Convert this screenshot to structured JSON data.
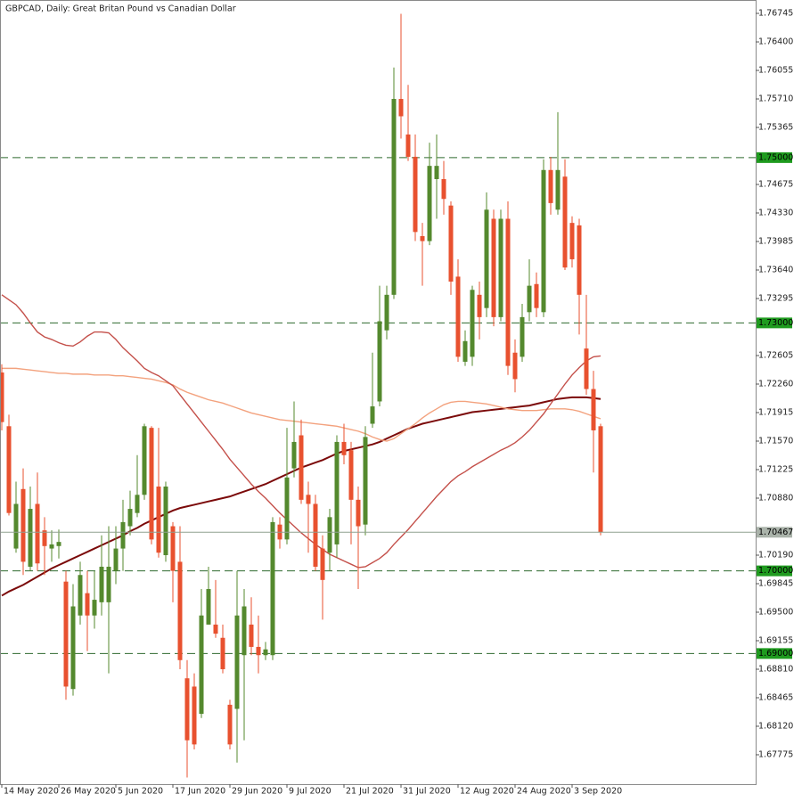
{
  "chart_data": {
    "type": "candlestick",
    "title": "GBPCAD, Daily:  Great Britan Pound vs Canadian Dollar",
    "categories": [
      "14 May 2020",
      null,
      null,
      null,
      null,
      null,
      null,
      null,
      "26 May 2020",
      null,
      null,
      null,
      null,
      null,
      null,
      null,
      "5 Jun 2020",
      null,
      null,
      null,
      null,
      null,
      null,
      null,
      "17 Jun 2020",
      null,
      null,
      null,
      null,
      null,
      null,
      null,
      "29 Jun 2020",
      null,
      null,
      null,
      null,
      null,
      null,
      null,
      "9 Jul 2020",
      null,
      null,
      null,
      null,
      null,
      null,
      null,
      "21 Jul 2020",
      null,
      null,
      null,
      null,
      null,
      null,
      null,
      "31 Jul 2020",
      null,
      null,
      null,
      null,
      null,
      null,
      null,
      "12 Aug 2020",
      null,
      null,
      null,
      null,
      null,
      null,
      null,
      "24 Aug 2020",
      null,
      null,
      null,
      null,
      null,
      null,
      null,
      "3 Sep 2020",
      null,
      null,
      null,
      null
    ],
    "open": [
      1.724,
      1.7175,
      1.7027,
      1.7099,
      1.7005,
      1.7081,
      1.7049,
      1.7027,
      1.703,
      1.6987,
      1.6857,
      1.6946,
      1.6973,
      1.6946,
      1.6962,
      1.6962,
      1.7,
      1.7027,
      1.7054,
      1.707,
      1.7092,
      1.7173,
      1.7102,
      1.7019,
      1.7054,
      1.7011,
      1.687,
      1.686,
      1.6827,
      1.6935,
      1.6935,
      1.6919,
      1.6838,
      1.6833,
      1.6898,
      1.6935,
      1.6908,
      1.6898,
      1.6898,
      1.7056,
      1.7038,
      1.7124,
      1.7164,
      1.7092,
      1.7081,
      1.7027,
      1.7022,
      1.7032,
      1.7156,
      1.7146,
      1.7086,
      1.7056,
      1.7178,
      1.7205,
      1.7291,
      1.7334,
      1.7571,
      1.7528,
      1.7501,
      1.7405,
      1.7399,
      1.7474,
      1.7474,
      1.7442,
      1.7356,
      1.7253,
      1.7259,
      1.7334,
      1.7318,
      1.7426,
      1.7307,
      1.7426,
      1.7264,
      1.7259,
      1.7313,
      1.7347,
      1.7313,
      1.7485,
      1.7437,
      1.7477,
      1.7421,
      1.7418,
      1.7269,
      1.722,
      1.7175
    ],
    "high": [
      1.725,
      1.7189,
      1.7108,
      1.7124,
      1.7102,
      1.7119,
      1.7065,
      1.7049,
      1.705,
      1.7,
      1.6984,
      1.7011,
      1.7,
      1.7,
      1.7043,
      1.7054,
      1.7054,
      1.7086,
      1.7097,
      1.714,
      1.7178,
      1.7175,
      1.7173,
      1.7108,
      1.7059,
      1.7054,
      1.6892,
      1.6876,
      1.6978,
      1.7005,
      1.6989,
      1.6935,
      1.6844,
      1.7,
      1.6978,
      1.6968,
      1.6946,
      1.6914,
      1.7065,
      1.7065,
      1.7173,
      1.7205,
      1.7183,
      1.7108,
      1.7092,
      1.7043,
      1.7075,
      1.7164,
      1.7178,
      1.7156,
      1.7102,
      1.7175,
      1.7264,
      1.7345,
      1.7345,
      1.7609,
      1.7674,
      1.7588,
      1.7528,
      1.7421,
      1.7518,
      1.7528,
      1.7496,
      1.7447,
      1.7377,
      1.7291,
      1.7345,
      1.735,
      1.7458,
      1.7437,
      1.7437,
      1.7447,
      1.728,
      1.7323,
      1.7377,
      1.7361,
      1.7498,
      1.7501,
      1.7555,
      1.7498,
      1.7429,
      1.7426,
      1.7334,
      1.7242,
      1.7178
    ],
    "low": [
      1.717,
      1.7067,
      1.7022,
      1.6995,
      1.7,
      1.7,
      1.6995,
      1.7011,
      1.7015,
      1.6844,
      1.6849,
      1.6935,
      1.6903,
      1.693,
      1.6946,
      1.6876,
      1.6984,
      1.7,
      1.7043,
      1.7065,
      1.7086,
      1.7032,
      1.7016,
      1.7011,
      1.6962,
      1.6881,
      1.675,
      1.6784,
      1.6822,
      1.6935,
      1.6919,
      1.6876,
      1.6784,
      1.6768,
      1.6795,
      1.6898,
      1.6876,
      1.6892,
      1.6892,
      1.7027,
      1.7032,
      1.7113,
      1.7081,
      1.7022,
      1.7,
      1.6941,
      1.7,
      1.7016,
      1.7129,
      1.7032,
      1.6978,
      1.7043,
      1.7173,
      1.7199,
      1.728,
      1.7329,
      1.7523,
      1.7496,
      1.7399,
      1.7345,
      1.7394,
      1.7426,
      1.7431,
      1.7334,
      1.7253,
      1.7248,
      1.7248,
      1.728,
      1.7307,
      1.7296,
      1.7302,
      1.7237,
      1.7216,
      1.7253,
      1.7302,
      1.7307,
      1.7307,
      1.7431,
      1.7431,
      1.7364,
      1.7367,
      1.7286,
      1.7213,
      1.7119,
      1.7043
    ],
    "close": [
      1.718,
      1.707,
      1.7081,
      1.7011,
      1.7075,
      1.7009,
      1.703,
      1.7032,
      1.7035,
      1.686,
      1.6957,
      1.6995,
      1.6946,
      1.6965,
      1.7005,
      1.7005,
      1.7027,
      1.7059,
      1.7075,
      1.7092,
      1.7175,
      1.7038,
      1.7022,
      1.7102,
      1.7,
      1.6892,
      1.6795,
      1.679,
      1.6946,
      1.6978,
      1.6924,
      1.6881,
      1.679,
      1.6946,
      1.6957,
      1.6908,
      1.6898,
      1.6905,
      1.7059,
      1.7038,
      1.7113,
      1.7156,
      1.7086,
      1.7081,
      1.7005,
      1.6989,
      1.7065,
      1.7156,
      1.714,
      1.7086,
      1.7054,
      1.7162,
      1.7199,
      1.7302,
      1.7334,
      1.7571,
      1.755,
      1.7501,
      1.741,
      1.7399,
      1.749,
      1.749,
      1.745,
      1.735,
      1.7259,
      1.7278,
      1.734,
      1.7307,
      1.7437,
      1.7307,
      1.7426,
      1.7248,
      1.7232,
      1.7307,
      1.7345,
      1.7318,
      1.7485,
      1.7445,
      1.7485,
      1.7367,
      1.7377,
      1.7334,
      1.722,
      1.717,
      1.70467
    ],
    "up_color": "#54892e",
    "down_color": "#e8512f",
    "series": [
      {
        "color": "#7b0a0a",
        "values": [
          1.697,
          1.6975,
          1.6979,
          1.6983,
          1.6988,
          1.6993,
          1.6998,
          1.7003,
          1.7007,
          1.7011,
          1.7015,
          1.7019,
          1.7023,
          1.7027,
          1.7031,
          1.7035,
          1.7039,
          1.7043,
          1.7048,
          1.7052,
          1.7057,
          1.7061,
          1.7065,
          1.7069,
          1.7073,
          1.7076,
          1.7078,
          1.708,
          1.7082,
          1.7084,
          1.7086,
          1.7088,
          1.709,
          1.7093,
          1.7096,
          1.7099,
          1.7102,
          1.7105,
          1.7109,
          1.7113,
          1.7117,
          1.7121,
          1.7125,
          1.7128,
          1.7131,
          1.7134,
          1.7138,
          1.7142,
          1.7145,
          1.7147,
          1.7149,
          1.7151,
          1.7153,
          1.7156,
          1.716,
          1.7164,
          1.7168,
          1.7172,
          1.7175,
          1.7178,
          1.718,
          1.7182,
          1.7184,
          1.7186,
          1.7188,
          1.719,
          1.7192,
          1.7193,
          1.7194,
          1.7195,
          1.7196,
          1.7197,
          1.7198,
          1.7199,
          1.72,
          1.7202,
          1.7204,
          1.7206,
          1.7208,
          1.7209,
          1.721,
          1.721,
          1.721,
          1.7209,
          1.7208
        ]
      },
      {
        "color": "#f3a27e",
        "values": [
          1.7245,
          1.7245,
          1.7245,
          1.7244,
          1.7243,
          1.7242,
          1.7241,
          1.724,
          1.7239,
          1.7239,
          1.7238,
          1.7238,
          1.7238,
          1.7237,
          1.7237,
          1.7237,
          1.7236,
          1.7236,
          1.7235,
          1.7234,
          1.7233,
          1.7232,
          1.723,
          1.7228,
          1.7225,
          1.722,
          1.7216,
          1.7213,
          1.721,
          1.7207,
          1.7205,
          1.7203,
          1.72,
          1.7197,
          1.7194,
          1.7191,
          1.7189,
          1.7187,
          1.7185,
          1.7183,
          1.7182,
          1.7181,
          1.718,
          1.7179,
          1.7178,
          1.7177,
          1.7176,
          1.7175,
          1.7173,
          1.7171,
          1.7169,
          1.7166,
          1.7162,
          1.7159,
          1.7157,
          1.716,
          1.7166,
          1.7172,
          1.7178,
          1.7185,
          1.7191,
          1.7196,
          1.7201,
          1.7204,
          1.7205,
          1.7205,
          1.7204,
          1.7203,
          1.7202,
          1.72,
          1.7198,
          1.7196,
          1.7195,
          1.7194,
          1.7194,
          1.7194,
          1.7195,
          1.7196,
          1.7196,
          1.7196,
          1.7195,
          1.7193,
          1.719,
          1.7187,
          1.7184
        ]
      },
      {
        "color": "#c4504a",
        "values": [
          1.7334,
          1.7328,
          1.7322,
          1.7312,
          1.73,
          1.7289,
          1.7283,
          1.728,
          1.7276,
          1.7273,
          1.7272,
          1.7277,
          1.7284,
          1.7289,
          1.7289,
          1.7288,
          1.728,
          1.727,
          1.7262,
          1.7254,
          1.7245,
          1.724,
          1.7236,
          1.723,
          1.7224,
          1.7213,
          1.7202,
          1.7191,
          1.718,
          1.7169,
          1.7158,
          1.7147,
          1.7135,
          1.7125,
          1.7115,
          1.7105,
          1.7096,
          1.7088,
          1.7079,
          1.707,
          1.7062,
          1.7054,
          1.7046,
          1.7039,
          1.7032,
          1.7026,
          1.702,
          1.7016,
          1.7012,
          1.7008,
          1.7004,
          1.7005,
          1.701,
          1.7015,
          1.7022,
          1.7032,
          1.7041,
          1.705,
          1.706,
          1.707,
          1.708,
          1.709,
          1.7099,
          1.7108,
          1.7115,
          1.712,
          1.7126,
          1.7131,
          1.7136,
          1.7141,
          1.7146,
          1.715,
          1.7155,
          1.7162,
          1.717,
          1.718,
          1.719,
          1.7202,
          1.7214,
          1.7226,
          1.7237,
          1.7246,
          1.7254,
          1.7259,
          1.726
        ]
      }
    ],
    "ylim": [
      1.67419,
      1.76907
    ],
    "yticks": [
      1.76745,
      {
        "value": 1.764,
        "label": "1.76400"
      },
      1.76055,
      {
        "value": 1.7571,
        "label": "1.75710"
      },
      1.75365,
      1.74675,
      {
        "value": 1.7433,
        "label": "1.74330"
      },
      1.73985,
      {
        "value": 1.7364,
        "label": "1.73640"
      },
      1.73295,
      1.72605,
      {
        "value": 1.7226,
        "label": "1.72260"
      },
      1.71915,
      {
        "value": 1.7157,
        "label": "1.71570"
      },
      1.71225,
      {
        "value": 1.7088,
        "label": "1.70880"
      },
      {
        "value": 1.7019,
        "label": "1.70190"
      },
      1.69845,
      {
        "value": 1.695,
        "label": "1.69500"
      },
      1.69155,
      {
        "value": 1.6881,
        "label": "1.68810"
      },
      1.68465,
      {
        "value": 1.6812,
        "label": "1.68120"
      },
      1.67775
    ],
    "levels": [
      {
        "value": 1.75,
        "label": "1.75000"
      },
      {
        "value": 1.73,
        "label": "1.73000"
      },
      {
        "value": 1.7,
        "label": "1.70000"
      },
      {
        "value": 1.69,
        "label": "1.69000"
      }
    ],
    "level_color": "#2f6a2f",
    "last_price": 1.70467,
    "grid": false
  }
}
